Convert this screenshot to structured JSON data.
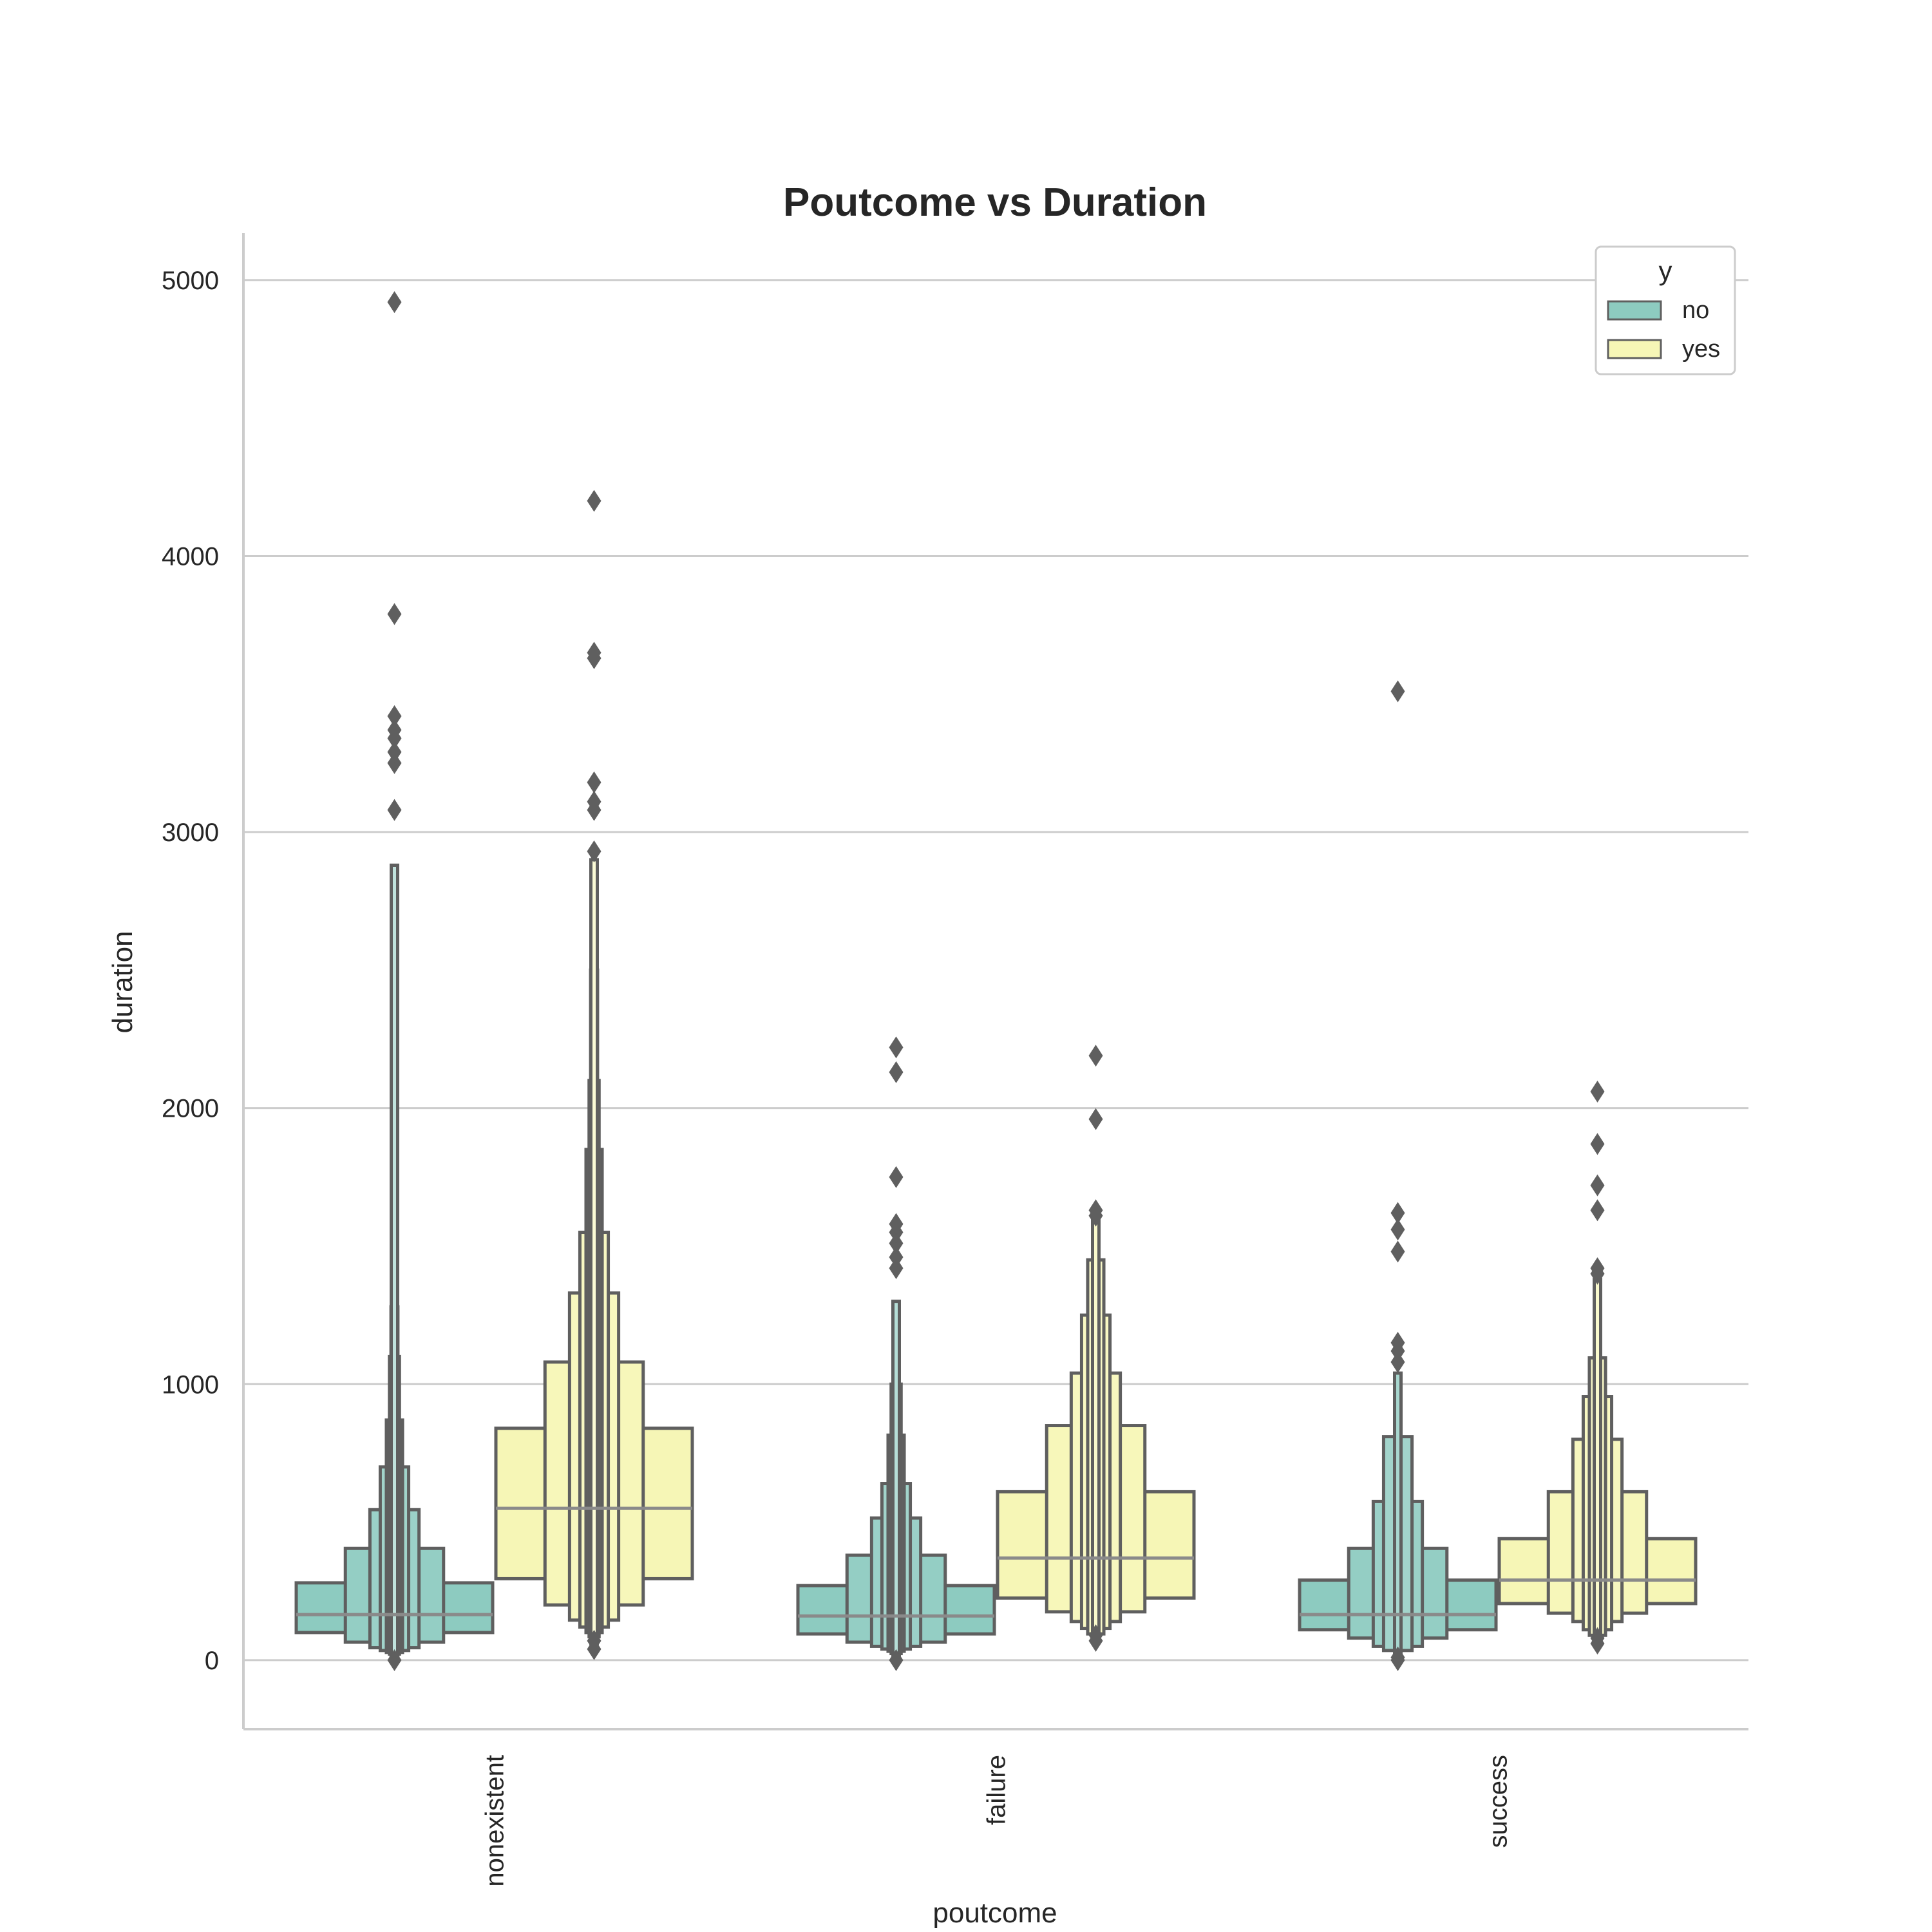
{
  "chart_data": {
    "type": "boxen",
    "title": "Poutcome vs Duration",
    "xlabel": "poutcome",
    "ylabel": "duration",
    "ylim": [
      -250,
      5170
    ],
    "yticks": [
      0,
      1000,
      2000,
      3000,
      4000,
      5000
    ],
    "categories": [
      "nonexistent",
      "failure",
      "success"
    ],
    "grid": "horizontal",
    "legend": {
      "title": "y",
      "placement": "top-right"
    },
    "series": [
      {
        "name": "no",
        "color": "#8dcbc0",
        "groups": [
          {
            "category": "nonexistent",
            "median": 165,
            "levels": [
              [
                100,
                280
              ],
              [
                65,
                405
              ],
              [
                45,
                545
              ],
              [
                35,
                700
              ],
              [
                28,
                870
              ],
              [
                22,
                1100
              ],
              [
                18,
                1280
              ],
              [
                14,
                1520
              ],
              [
                10,
                2880
              ]
            ],
            "outliers": [
              0,
              3080,
              3250,
              3290,
              3340,
              3370,
              3420,
              3790,
              4920
            ]
          },
          {
            "category": "failure",
            "median": 160,
            "levels": [
              [
                95,
                270
              ],
              [
                65,
                380
              ],
              [
                50,
                515
              ],
              [
                40,
                640
              ],
              [
                32,
                815
              ],
              [
                24,
                1000
              ],
              [
                18,
                1300
              ]
            ],
            "outliers": [
              0,
              1420,
              1460,
              1510,
              1550,
              1580,
              1750,
              2130,
              2220
            ]
          },
          {
            "category": "success",
            "median": 165,
            "levels": [
              [
                110,
                290
              ],
              [
                80,
                405
              ],
              [
                50,
                575
              ],
              [
                35,
                810
              ],
              [
                25,
                1040
              ]
            ],
            "outliers": [
              0,
              10,
              1080,
              1120,
              1150,
              1480,
              1560,
              1620,
              3510
            ]
          }
        ]
      },
      {
        "name": "yes",
        "color": "#f6f6b6",
        "groups": [
          {
            "category": "nonexistent",
            "median": 550,
            "levels": [
              [
                295,
                840
              ],
              [
                200,
                1080
              ],
              [
                145,
                1330
              ],
              [
                120,
                1550
              ],
              [
                100,
                1850
              ],
              [
                85,
                2100
              ],
              [
                70,
                2500
              ],
              [
                60,
                2900
              ]
            ],
            "outliers": [
              40,
              70,
              2930,
              3080,
              3110,
              3180,
              3630,
              3650,
              4200
            ]
          },
          {
            "category": "failure",
            "median": 370,
            "levels": [
              [
                225,
                610
              ],
              [
                175,
                850
              ],
              [
                140,
                1040
              ],
              [
                115,
                1250
              ],
              [
                95,
                1450
              ],
              [
                80,
                1600
              ]
            ],
            "outliers": [
              70,
              90,
              1610,
              1630,
              1960,
              2190
            ]
          },
          {
            "category": "success",
            "median": 290,
            "levels": [
              [
                205,
                440
              ],
              [
                170,
                610
              ],
              [
                140,
                800
              ],
              [
                110,
                955
              ],
              [
                90,
                1095
              ],
              [
                75,
                1380
              ]
            ],
            "outliers": [
              60,
              80,
              1400,
              1420,
              1630,
              1720,
              1870,
              2060
            ]
          }
        ]
      }
    ]
  }
}
